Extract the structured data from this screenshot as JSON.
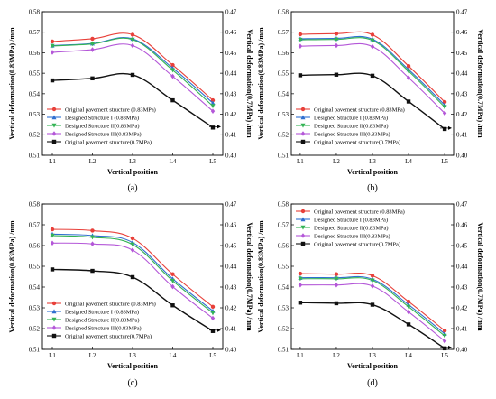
{
  "chart_data": [
    {
      "type": "line",
      "panel_label": "(a)",
      "xlabel": "Vertical position",
      "ylabel": "Vertical deformation(0.83MPa) /mm",
      "y2label": "Vertical deformation(0.7MPa) /mm",
      "categories": [
        "L1",
        "L2",
        "L3",
        "L4",
        "L5"
      ],
      "ylim": [
        0.51,
        0.58
      ],
      "y2lim": [
        0.4,
        0.47
      ],
      "yticks": [
        "0.51",
        "0.52",
        "0.53",
        "0.54",
        "0.55",
        "0.56",
        "0.57",
        "0.58"
      ],
      "y2ticks": [
        "0.40",
        "0.41",
        "0.42",
        "0.43",
        "0.44",
        "0.45",
        "0.46",
        "0.47"
      ],
      "legend_position": "bottom-center",
      "series": [
        {
          "name": "Original pavement structure (0.83MPa)",
          "axis": "left",
          "color": "#e8403a",
          "marker": "circle",
          "values": [
            0.5655,
            0.5668,
            0.5688,
            0.554,
            0.5368
          ]
        },
        {
          "name": "Designed Structure I (0.83MPa)",
          "axis": "left",
          "color": "#2f6fd0",
          "marker": "triangle-up",
          "values": [
            0.5635,
            0.5645,
            0.5668,
            0.5525,
            0.5355
          ]
        },
        {
          "name": "Designed Structure II(0.83MPa)",
          "axis": "left",
          "color": "#33b354",
          "marker": "triangle-down",
          "values": [
            0.5633,
            0.5643,
            0.5664,
            0.5515,
            0.534
          ]
        },
        {
          "name": "Designed Structure III(0.83MPa)",
          "axis": "left",
          "color": "#b457d8",
          "marker": "diamond",
          "values": [
            0.5602,
            0.5615,
            0.5635,
            0.5485,
            0.5315
          ]
        },
        {
          "name": "Original pavement structure(0.7MPa)",
          "axis": "right",
          "color": "#111111",
          "marker": "square",
          "values": [
            0.4365,
            0.4375,
            0.4392,
            0.4268,
            0.4135
          ]
        }
      ]
    },
    {
      "type": "line",
      "panel_label": "(b)",
      "xlabel": "Vertical position",
      "ylabel": "Vertical deformation(0.83MPa) /mm",
      "y2label": "Vertical deformation(0.7MPa) /mm",
      "categories": [
        "L1",
        "L2",
        "L3",
        "L4",
        "L5"
      ],
      "ylim": [
        0.51,
        0.58
      ],
      "y2lim": [
        0.4,
        0.47
      ],
      "yticks": [
        "0.51",
        "0.52",
        "0.53",
        "0.54",
        "0.55",
        "0.56",
        "0.57",
        "0.58"
      ],
      "y2ticks": [
        "0.40",
        "0.41",
        "0.42",
        "0.43",
        "0.44",
        "0.45",
        "0.46",
        "0.47"
      ],
      "legend_position": "bottom-center",
      "series": [
        {
          "name": "Original pavement structure (0.83MPa)",
          "axis": "left",
          "color": "#e8403a",
          "marker": "circle",
          "values": [
            0.569,
            0.5693,
            0.5688,
            0.5535,
            0.536
          ]
        },
        {
          "name": "Designed Structure I (0.83MPa)",
          "axis": "left",
          "color": "#2f6fd0",
          "marker": "triangle-up",
          "values": [
            0.5668,
            0.567,
            0.5666,
            0.5518,
            0.5345
          ]
        },
        {
          "name": "Designed Structure II(0.83MPa)",
          "axis": "left",
          "color": "#33b354",
          "marker": "triangle-down",
          "values": [
            0.5663,
            0.5665,
            0.566,
            0.551,
            0.5335
          ]
        },
        {
          "name": "Designed Structure III(0.83MPa)",
          "axis": "left",
          "color": "#b457d8",
          "marker": "diamond",
          "values": [
            0.5632,
            0.5635,
            0.563,
            0.5478,
            0.5305
          ]
        },
        {
          "name": "Original pavement structure(0.7MPa)",
          "axis": "right",
          "color": "#111111",
          "marker": "square",
          "values": [
            0.439,
            0.4393,
            0.4388,
            0.4262,
            0.4128
          ]
        }
      ]
    },
    {
      "type": "line",
      "panel_label": "(c)",
      "xlabel": "Vertical position",
      "ylabel": "Vertical deformation(0.83MPa) /mm",
      "y2label": "Vertical deformation(0.7MPa) /mm",
      "categories": [
        "L1",
        "L2",
        "L3",
        "L4",
        "L5"
      ],
      "ylim": [
        0.51,
        0.58
      ],
      "y2lim": [
        0.4,
        0.47
      ],
      "yticks": [
        "0.51",
        "0.52",
        "0.53",
        "0.54",
        "0.55",
        "0.56",
        "0.57",
        "0.58"
      ],
      "y2ticks": [
        "0.40",
        "0.41",
        "0.42",
        "0.43",
        "0.44",
        "0.45",
        "0.46",
        "0.47"
      ],
      "legend_position": "bottom-center",
      "series": [
        {
          "name": "Original pavement structure (0.83MPa)",
          "axis": "left",
          "color": "#e8403a",
          "marker": "circle",
          "values": [
            0.5678,
            0.5672,
            0.5635,
            0.5462,
            0.5305
          ]
        },
        {
          "name": "Designed Structure I (0.83MPa)",
          "axis": "left",
          "color": "#2f6fd0",
          "marker": "triangle-up",
          "values": [
            0.5655,
            0.5648,
            0.5615,
            0.544,
            0.5285
          ]
        },
        {
          "name": "Designed Structure II(0.83MPa)",
          "axis": "left",
          "color": "#33b354",
          "marker": "triangle-down",
          "values": [
            0.5648,
            0.564,
            0.5605,
            0.543,
            0.5275
          ]
        },
        {
          "name": "Designed Structure III(0.83MPa)",
          "axis": "left",
          "color": "#b457d8",
          "marker": "diamond",
          "values": [
            0.5612,
            0.5608,
            0.5578,
            0.5402,
            0.525
          ]
        },
        {
          "name": "Original pavement structure(0.7MPa)",
          "axis": "right",
          "color": "#111111",
          "marker": "square",
          "values": [
            0.4385,
            0.4378,
            0.4348,
            0.4212,
            0.4088
          ]
        }
      ]
    },
    {
      "type": "line",
      "panel_label": "(d)",
      "xlabel": "Vertical position",
      "ylabel": "Vertical deformation(0.83MPa) /mm",
      "y2label": "Vertical deformation(0.7MPa) /mm",
      "categories": [
        "L1",
        "L2",
        "L3",
        "L4",
        "L5"
      ],
      "ylim": [
        0.51,
        0.58
      ],
      "y2lim": [
        0.4,
        0.47
      ],
      "yticks": [
        "0.51",
        "0.52",
        "0.53",
        "0.54",
        "0.55",
        "0.56",
        "0.57",
        "0.58"
      ],
      "y2ticks": [
        "0.40",
        "0.41",
        "0.42",
        "0.43",
        "0.44",
        "0.45",
        "0.46",
        "0.47"
      ],
      "legend_position": "top-center",
      "series": [
        {
          "name": "Original pavement structure (0.83MPa)",
          "axis": "left",
          "color": "#e8403a",
          "marker": "circle",
          "values": [
            0.5465,
            0.5462,
            0.5455,
            0.533,
            0.519
          ]
        },
        {
          "name": "Designed Structure I (0.83MPa)",
          "axis": "left",
          "color": "#2f6fd0",
          "marker": "triangle-up",
          "values": [
            0.5445,
            0.5445,
            0.5438,
            0.5315,
            0.5175
          ]
        },
        {
          "name": "Designed Structure II(0.83MPa)",
          "axis": "left",
          "color": "#33b354",
          "marker": "triangle-down",
          "values": [
            0.544,
            0.544,
            0.5432,
            0.5305,
            0.5165
          ]
        },
        {
          "name": "Designed Structure III(0.83MPa)",
          "axis": "left",
          "color": "#b457d8",
          "marker": "diamond",
          "values": [
            0.541,
            0.541,
            0.5405,
            0.528,
            0.514
          ]
        },
        {
          "name": "Original pavement structure(0.7MPa)",
          "axis": "right",
          "color": "#111111",
          "marker": "square",
          "values": [
            0.4225,
            0.4222,
            0.4215,
            0.412,
            0.4005
          ]
        }
      ]
    }
  ]
}
